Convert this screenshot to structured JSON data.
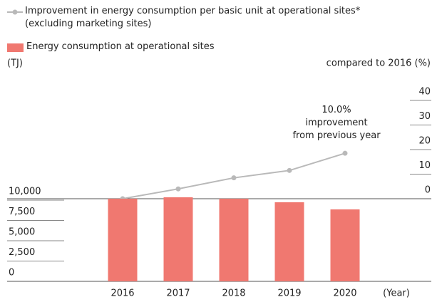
{
  "chart_data": {
    "type": "bar",
    "categories": [
      "2016",
      "2017",
      "2018",
      "2019",
      "2020"
    ],
    "xlabel": "(Year)",
    "ylabel": "(TJ)",
    "y2label": "compared to 2016 (%)",
    "series": [
      {
        "name": "Improvement in energy consumption per basic unit at operational sites*\n(excluding marketing sites)",
        "type": "line",
        "axis": "y2",
        "color": "#b9b9b9",
        "values": [
          0,
          4,
          8.5,
          11.5,
          18.5
        ]
      },
      {
        "name": "Energy consumption at operational sites",
        "type": "bar",
        "color": "#f07870",
        "values": [
          10180,
          10350,
          10180,
          9740,
          8860
        ]
      }
    ],
    "ylim": [
      0,
      10000
    ],
    "yticks": [
      0,
      {
        "value": 2500,
        "label": "2,500"
      },
      {
        "value": 5000,
        "label": "5,000"
      },
      {
        "value": 7500,
        "label": "7,500"
      },
      {
        "value": 10000,
        "label": "10,000"
      }
    ],
    "y2lim": [
      0,
      40
    ],
    "y2ticks": [
      0,
      10,
      20,
      30,
      40
    ],
    "annotation": "10.0% improvement\nfrom previous year"
  }
}
